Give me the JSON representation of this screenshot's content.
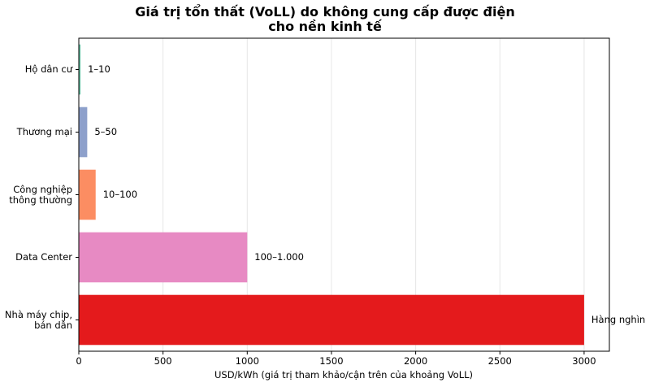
{
  "chart_data": {
    "type": "barh",
    "title": "Giá trị tổn thất (VoLL) do không cung cấp được điện\ncho nền kinh tế",
    "xlabel": "USD/kWh (giá trị tham khảo/cận trên của khoảng VoLL)",
    "categories": [
      "Hộ dân cư",
      "Thương mại",
      "Công nghiệp\nthông thường",
      "Data Center",
      "Nhà máy chip,\nbán dẫn"
    ],
    "values": [
      10,
      50,
      100,
      1000,
      3000
    ],
    "value_labels": [
      "1–10",
      "5–50",
      "10–100",
      "100–1.000",
      "Hàng nghìn"
    ],
    "colors": [
      "#66c2a5",
      "#8da0cb",
      "#fc8d62",
      "#e78ac3",
      "#e41a1c"
    ],
    "xlim": [
      0,
      3150
    ],
    "xticks": [
      0,
      500,
      1000,
      1500,
      2000,
      2500,
      3000
    ],
    "grid": true
  }
}
